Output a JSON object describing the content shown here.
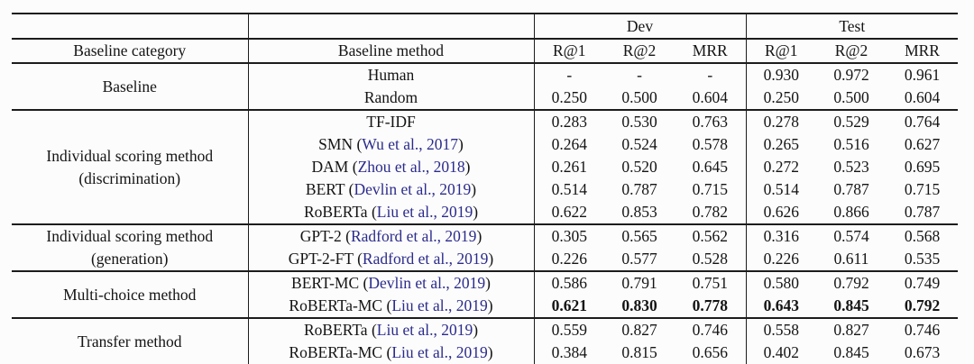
{
  "table": {
    "title_semantic": "baseline-results-table",
    "rule_color": "#1c1c1c",
    "cite_color": "#2b2b8c",
    "header": {
      "dev_label": "Dev",
      "test_label": "Test",
      "category_label": "Baseline category",
      "method_label": "Baseline method",
      "metrics": [
        "R@1",
        "R@2",
        "MRR",
        "R@1",
        "R@2",
        "MRR"
      ]
    },
    "groups": [
      {
        "category_lines": [
          "Baseline"
        ],
        "rows": [
          {
            "method": "Human",
            "cite": null,
            "bold": false,
            "dev": [
              "-",
              "-",
              "-"
            ],
            "test": [
              "0.930",
              "0.972",
              "0.961"
            ]
          },
          {
            "method": "Random",
            "cite": null,
            "bold": false,
            "dev": [
              "0.250",
              "0.500",
              "0.604"
            ],
            "test": [
              "0.250",
              "0.500",
              "0.604"
            ]
          }
        ]
      },
      {
        "category_lines": [
          "Individual scoring method",
          "(discrimination)"
        ],
        "rows": [
          {
            "method": "TF-IDF",
            "cite": null,
            "bold": false,
            "dev": [
              "0.283",
              "0.530",
              "0.763"
            ],
            "test": [
              "0.278",
              "0.529",
              "0.764"
            ]
          },
          {
            "method": "SMN",
            "cite": "Wu et al., 2017",
            "bold": false,
            "dev": [
              "0.264",
              "0.524",
              "0.578"
            ],
            "test": [
              "0.265",
              "0.516",
              "0.627"
            ]
          },
          {
            "method": "DAM",
            "cite": "Zhou et al., 2018",
            "bold": false,
            "dev": [
              "0.261",
              "0.520",
              "0.645"
            ],
            "test": [
              "0.272",
              "0.523",
              "0.695"
            ]
          },
          {
            "method": "BERT",
            "cite": "Devlin et al., 2019",
            "bold": false,
            "dev": [
              "0.514",
              "0.787",
              "0.715"
            ],
            "test": [
              "0.514",
              "0.787",
              "0.715"
            ]
          },
          {
            "method": "RoBERTa",
            "cite": "Liu et al., 2019",
            "bold": false,
            "dev": [
              "0.622",
              "0.853",
              "0.782"
            ],
            "test": [
              "0.626",
              "0.866",
              "0.787"
            ]
          }
        ]
      },
      {
        "category_lines": [
          "Individual scoring method",
          "(generation)"
        ],
        "rows": [
          {
            "method": "GPT-2",
            "cite": "Radford et al., 2019",
            "bold": false,
            "dev": [
              "0.305",
              "0.565",
              "0.562"
            ],
            "test": [
              "0.316",
              "0.574",
              "0.568"
            ]
          },
          {
            "method": "GPT-2-FT",
            "cite": "Radford et al., 2019",
            "bold": false,
            "dev": [
              "0.226",
              "0.577",
              "0.528"
            ],
            "test": [
              "0.226",
              "0.611",
              "0.535"
            ]
          }
        ]
      },
      {
        "category_lines": [
          "Multi-choice method"
        ],
        "rows": [
          {
            "method": "BERT-MC",
            "cite": "Devlin et al., 2019",
            "bold": false,
            "dev": [
              "0.586",
              "0.791",
              "0.751"
            ],
            "test": [
              "0.580",
              "0.792",
              "0.749"
            ]
          },
          {
            "method": "RoBERTa-MC",
            "cite": "Liu et al., 2019",
            "bold": true,
            "dev": [
              "0.621",
              "0.830",
              "0.778"
            ],
            "test": [
              "0.643",
              "0.845",
              "0.792"
            ]
          }
        ]
      },
      {
        "category_lines": [
          "Transfer method"
        ],
        "rows": [
          {
            "method": "RoBERTa",
            "cite": "Liu et al., 2019",
            "bold": false,
            "dev": [
              "0.559",
              "0.827",
              "0.746"
            ],
            "test": [
              "0.558",
              "0.827",
              "0.746"
            ]
          },
          {
            "method": "RoBERTa-MC",
            "cite": "Liu et al., 2019",
            "bold": false,
            "dev": [
              "0.384",
              "0.815",
              "0.656"
            ],
            "test": [
              "0.402",
              "0.845",
              "0.673"
            ]
          }
        ]
      }
    ]
  }
}
